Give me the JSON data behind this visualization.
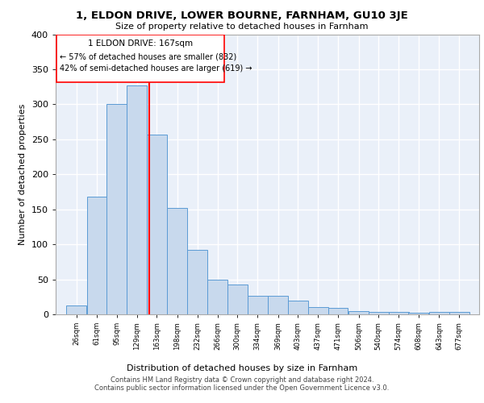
{
  "title": "1, ELDON DRIVE, LOWER BOURNE, FARNHAM, GU10 3JE",
  "subtitle": "Size of property relative to detached houses in Farnham",
  "xlabel": "Distribution of detached houses by size in Farnham",
  "ylabel": "Number of detached properties",
  "property_size": 167,
  "property_label": "1 ELDON DRIVE: 167sqm",
  "annotation_line1": "← 57% of detached houses are smaller (832)",
  "annotation_line2": "42% of semi-detached houses are larger (619) →",
  "bins": [
    26,
    61,
    95,
    129,
    163,
    198,
    232,
    266,
    300,
    334,
    369,
    403,
    437,
    471,
    506,
    540,
    574,
    608,
    643,
    677,
    711
  ],
  "counts": [
    13,
    168,
    300,
    327,
    257,
    152,
    92,
    50,
    43,
    27,
    27,
    20,
    10,
    9,
    5,
    4,
    4,
    2,
    3,
    4
  ],
  "bar_color": "#c8d9ed",
  "bar_edge_color": "#5b9bd5",
  "red_line_x": 167,
  "background_color": "#eaf0f9",
  "grid_color": "#ffffff",
  "footer_line1": "Contains HM Land Registry data © Crown copyright and database right 2024.",
  "footer_line2": "Contains public sector information licensed under the Open Government Licence v3.0.",
  "ylim": [
    0,
    400
  ],
  "yticks": [
    0,
    50,
    100,
    150,
    200,
    250,
    300,
    350,
    400
  ]
}
